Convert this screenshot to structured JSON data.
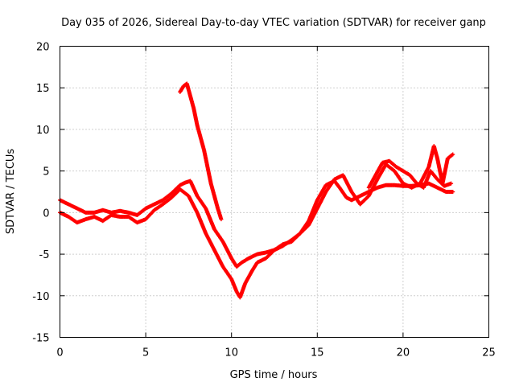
{
  "chart_data": {
    "type": "scatter",
    "title": "Day 035 of 2026, Sidereal Day-to-day VTEC variation (SDTVAR) for receiver ganp",
    "xlabel": "GPS time / hours",
    "ylabel": "SDTVAR / TECUs",
    "xlim": [
      0,
      25
    ],
    "ylim": [
      -15,
      20
    ],
    "xticks": [
      "0",
      "5",
      "10",
      "15",
      "20",
      "25"
    ],
    "yticks": [
      "-15",
      "-10",
      "-5",
      "0",
      "5",
      "10",
      "15",
      "20"
    ],
    "grid": true,
    "legend": "none",
    "series": [
      {
        "name": "SDTVAR",
        "color": "#ff0000",
        "marker": "plus",
        "segments": [
          {
            "x": [
              0.0,
              0.5,
              1.0,
              1.5,
              2.0,
              2.5,
              3.0,
              3.5,
              4.0,
              4.5,
              5.0,
              5.5,
              6.0,
              6.5,
              7.0,
              7.3,
              7.6,
              8.0,
              8.5,
              9.0,
              9.5,
              10.0,
              10.3,
              10.6,
              11.0,
              11.5,
              12.0,
              12.5,
              13.0,
              13.5,
              14.0,
              14.5,
              15.0,
              15.5,
              16.0,
              16.3,
              16.7,
              17.0,
              17.5,
              18.0,
              18.5,
              19.0,
              19.5,
              20.0,
              20.5,
              21.0,
              21.5,
              22.0,
              22.5,
              22.9
            ],
            "y": [
              1.5,
              1.0,
              0.5,
              0.0,
              0.0,
              0.3,
              0.0,
              0.2,
              0.0,
              -0.3,
              0.5,
              1.0,
              1.5,
              2.3,
              3.3,
              3.6,
              3.8,
              2.0,
              0.5,
              -2.0,
              -3.5,
              -5.5,
              -6.5,
              -6.0,
              -5.5,
              -5.0,
              -4.8,
              -4.5,
              -4.0,
              -3.3,
              -2.5,
              -1.0,
              1.5,
              3.3,
              3.8,
              3.0,
              1.8,
              1.5,
              2.0,
              2.5,
              3.0,
              3.3,
              3.3,
              3.2,
              3.2,
              3.3,
              3.5,
              3.0,
              2.5,
              2.5
            ]
          },
          {
            "x": [
              0.0,
              0.5,
              1.0,
              1.5,
              2.0,
              2.5,
              3.0,
              3.5,
              4.0,
              4.5,
              5.0,
              5.5,
              6.0,
              6.5,
              7.0,
              7.5,
              8.0,
              8.5,
              9.0,
              9.5,
              10.0,
              10.3,
              10.5,
              10.8,
              11.2,
              11.5,
              12.0,
              12.5,
              13.0,
              13.5,
              14.0,
              14.5,
              15.0,
              15.5,
              16.0,
              16.5,
              17.0,
              17.5,
              18.0,
              18.5,
              19.0,
              19.5,
              20.0,
              20.5,
              21.0,
              21.5,
              21.8,
              22.0,
              22.3,
              22.6,
              22.9
            ],
            "y": [
              0.0,
              -0.5,
              -1.2,
              -0.8,
              -0.5,
              -1.0,
              -0.3,
              -0.5,
              -0.5,
              -1.2,
              -0.8,
              0.3,
              1.0,
              1.8,
              2.8,
              2.0,
              0.0,
              -2.5,
              -4.5,
              -6.5,
              -8.0,
              -9.5,
              -10.2,
              -8.5,
              -7.0,
              -6.0,
              -5.5,
              -4.5,
              -3.8,
              -3.5,
              -2.5,
              -1.5,
              0.5,
              2.5,
              4.0,
              4.5,
              2.5,
              1.0,
              2.0,
              4.0,
              5.8,
              5.0,
              3.5,
              3.0,
              3.5,
              5.5,
              8.0,
              6.5,
              3.5,
              6.5,
              7.0
            ]
          },
          {
            "x": [
              7.0,
              7.2,
              7.4,
              7.6,
              7.8,
              8.0,
              8.2,
              8.4,
              8.6,
              8.8,
              9.0,
              9.2,
              9.4
            ],
            "y": [
              14.5,
              15.2,
              15.5,
              14.0,
              12.5,
              10.5,
              9.0,
              7.5,
              5.5,
              3.5,
              2.0,
              0.5,
              -0.8
            ]
          },
          {
            "x": [
              18.0,
              18.4,
              18.8,
              19.2,
              19.6,
              20.0,
              20.4,
              20.8,
              21.2,
              21.6,
              22.0,
              22.4,
              22.8
            ],
            "y": [
              3.0,
              4.5,
              6.0,
              6.2,
              5.5,
              5.0,
              4.5,
              3.5,
              3.0,
              5.0,
              4.0,
              3.2,
              3.5
            ]
          }
        ]
      }
    ]
  }
}
